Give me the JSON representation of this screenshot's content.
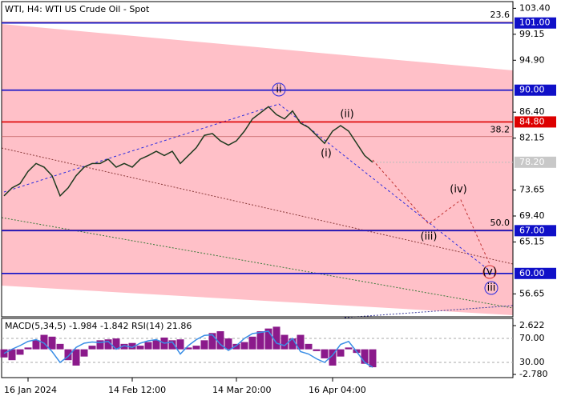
{
  "chart_data": {
    "type": "line",
    "title": "WTI, H4:  WTI US Crude Oil - Spot",
    "categories": [
      null,
      null,
      null,
      "16 Jan 2024",
      null,
      null,
      null,
      null,
      null,
      null,
      null,
      null,
      null,
      null,
      null,
      null,
      "14 Feb 12:00",
      null,
      null,
      null,
      null,
      null,
      null,
      null,
      null,
      null,
      null,
      null,
      null,
      "14 Mar 20:00",
      null,
      null,
      null,
      null,
      null,
      null,
      null,
      null,
      null,
      null,
      null,
      "16 Apr 04:00",
      null,
      null,
      null,
      null,
      null
    ],
    "values": [
      72.7,
      74.0,
      74.7,
      76.7,
      78.0,
      77.4,
      76.0,
      72.7,
      74.0,
      76.0,
      77.4,
      78.0,
      78.0,
      78.7,
      77.4,
      78.0,
      77.4,
      78.7,
      79.3,
      80.0,
      79.3,
      80.0,
      78.0,
      79.3,
      80.6,
      82.6,
      82.9,
      81.7,
      81.0,
      81.7,
      83.3,
      85.3,
      86.3,
      87.3,
      86.0,
      85.3,
      86.6,
      84.6,
      83.9,
      82.6,
      81.3,
      83.3,
      84.2,
      83.3,
      81.3,
      79.3,
      78.2
    ],
    "color": "#1f3a1f",
    "ylim": [
      52.9,
      104.5
    ],
    "yticks": [
      {
        "value": 103.4,
        "label": "103.40"
      },
      99.15,
      {
        "value": 94.9,
        "label": "94.90"
      },
      {
        "value": 86.4,
        "label": "86.40"
      },
      82.15,
      73.65,
      {
        "value": 69.4,
        "label": "69.40"
      },
      65.15,
      56.65
    ],
    "levels": [
      {
        "value": 101,
        "label": "101.00",
        "color": "#1010c8"
      },
      {
        "value": 90,
        "label": "90.00",
        "color": "#1010c8"
      },
      {
        "value": 84.8,
        "label": "84.80",
        "color": "#dd0000"
      },
      {
        "value": 67,
        "label": "67.00",
        "color": "#1010c8"
      },
      {
        "value": 60,
        "label": "60.00",
        "color": "#1010c8"
      }
    ],
    "last_price": {
      "value": 78.2,
      "label": "78.20"
    },
    "fib_levels": [
      {
        "value": 101.2,
        "label": "23.6"
      },
      {
        "value": 82.4,
        "label": "38.2"
      },
      {
        "value": 67.15,
        "label": "50.0"
      }
    ],
    "wave_labels": [
      "(i)",
      "(ii)",
      "(iii)",
      "(iv)",
      "(v)",
      "ii",
      "iii"
    ],
    "indicator": {
      "title": "MACD(5,34,5) -1.984 -1.842 RSI(14) 21.86",
      "macd_color": "#8b1a8b",
      "rsi_color": "#3a8ee6",
      "macd": [
        -0.9,
        -1.2,
        -0.6,
        0.2,
        1.0,
        1.6,
        1.4,
        0.6,
        -1.2,
        -1.8,
        -0.8,
        0.4,
        1.0,
        1.1,
        1.2,
        0.6,
        0.7,
        0.4,
        0.8,
        1.0,
        1.3,
        1.0,
        1.1,
        0.2,
        0.4,
        1.0,
        1.8,
        2.0,
        1.2,
        0.6,
        0.8,
        1.4,
        2.0,
        2.3,
        2.5,
        1.6,
        1.2,
        1.6,
        0.6,
        -0.2,
        -1.0,
        -1.8,
        -0.8,
        0.2,
        -0.4,
        -1.6,
        -1.984
      ],
      "rsi": [
        45,
        52,
        58,
        65,
        68,
        62,
        48,
        30,
        40,
        55,
        62,
        64,
        63,
        65,
        52,
        58,
        55,
        62,
        66,
        68,
        62,
        64,
        44,
        58,
        68,
        75,
        76,
        60,
        50,
        58,
        70,
        78,
        80,
        82,
        62,
        58,
        70,
        48,
        44,
        36,
        30,
        42,
        60,
        65,
        48,
        30,
        21.86
      ],
      "ylim": [
        -3.13,
        3.42
      ],
      "yticks": [
        2.622,
        {
          "value": -2.78,
          "label": "-2.780"
        }
      ],
      "y2lim": [
        4.7,
        103.3
      ],
      "y2ticks": [
        {
          "value": 70,
          "label": "70.00"
        },
        {
          "value": 30,
          "label": "30.00"
        }
      ]
    }
  }
}
